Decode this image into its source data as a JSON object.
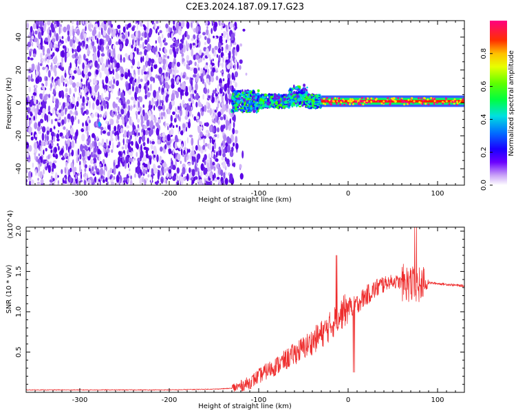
{
  "title": "C2E3.2024.187.09.17.G23",
  "chart_data": [
    {
      "type": "heatmap",
      "xlabel": "Height of straight line (km)",
      "ylabel": "Frequency (Hz)",
      "xlim": [
        -360,
        130
      ],
      "ylim": [
        -50,
        50
      ],
      "xticks": [
        -300,
        -200,
        -100,
        0,
        100
      ],
      "yticks": [
        -40,
        -20,
        0,
        20,
        40
      ],
      "colorbar": {
        "label": "Normalized spectral amplitude",
        "range": [
          0.0,
          1.0
        ],
        "ticks": [
          0.0,
          0.2,
          0.4,
          0.6,
          0.8
        ],
        "tick_labels": [
          "0.0",
          "0.2",
          "0.4",
          "0.6",
          "0.8"
        ]
      },
      "regions": [
        {
          "name": "noise",
          "x": [
            -360,
            -125
          ],
          "y": [
            -50,
            50
          ],
          "amplitude": [
            0.02,
            0.2
          ]
        },
        {
          "name": "signal-onset",
          "x": [
            -130,
            -30
          ],
          "y_center_approx": 1,
          "width_hz": 8,
          "amplitude": [
            0.2,
            0.5
          ]
        },
        {
          "name": "signal-strong",
          "x": [
            -30,
            130
          ],
          "y_center_approx": 1,
          "width_hz": 4,
          "amplitude": [
            0.8,
            1.0
          ]
        }
      ]
    },
    {
      "type": "line",
      "xlabel": "Height of straight line (km)",
      "ylabel": "SNR (10 * v/v)",
      "y_multiplier": "(x10^4)",
      "xlim": [
        -360,
        130
      ],
      "ylim": [
        0,
        2.05
      ],
      "xticks": [
        -300,
        -200,
        -100,
        0,
        100
      ],
      "yticks": [
        0.5,
        1.0,
        1.5,
        2.0
      ],
      "ytick_labels": [
        "0.5",
        "1.0",
        "1.5",
        "2.0"
      ],
      "series": [
        {
          "name": "SNR",
          "color": "#ee2c2c",
          "x": [
            -360,
            -300,
            -250,
            -200,
            -150,
            -130,
            -120,
            -110,
            -100,
            -90,
            -80,
            -70,
            -60,
            -50,
            -40,
            -30,
            -20,
            -10,
            0,
            10,
            20,
            30,
            40,
            50,
            60,
            70,
            75,
            80,
            90,
            100,
            110,
            120,
            130
          ],
          "y": [
            0.03,
            0.03,
            0.03,
            0.03,
            0.04,
            0.05,
            0.08,
            0.12,
            0.2,
            0.27,
            0.33,
            0.4,
            0.48,
            0.55,
            0.63,
            0.72,
            0.82,
            0.95,
            1.05,
            1.1,
            1.2,
            1.28,
            1.35,
            1.38,
            1.36,
            1.35,
            1.3,
            1.32,
            1.36,
            1.35,
            1.34,
            1.33,
            1.32
          ]
        }
      ]
    }
  ]
}
